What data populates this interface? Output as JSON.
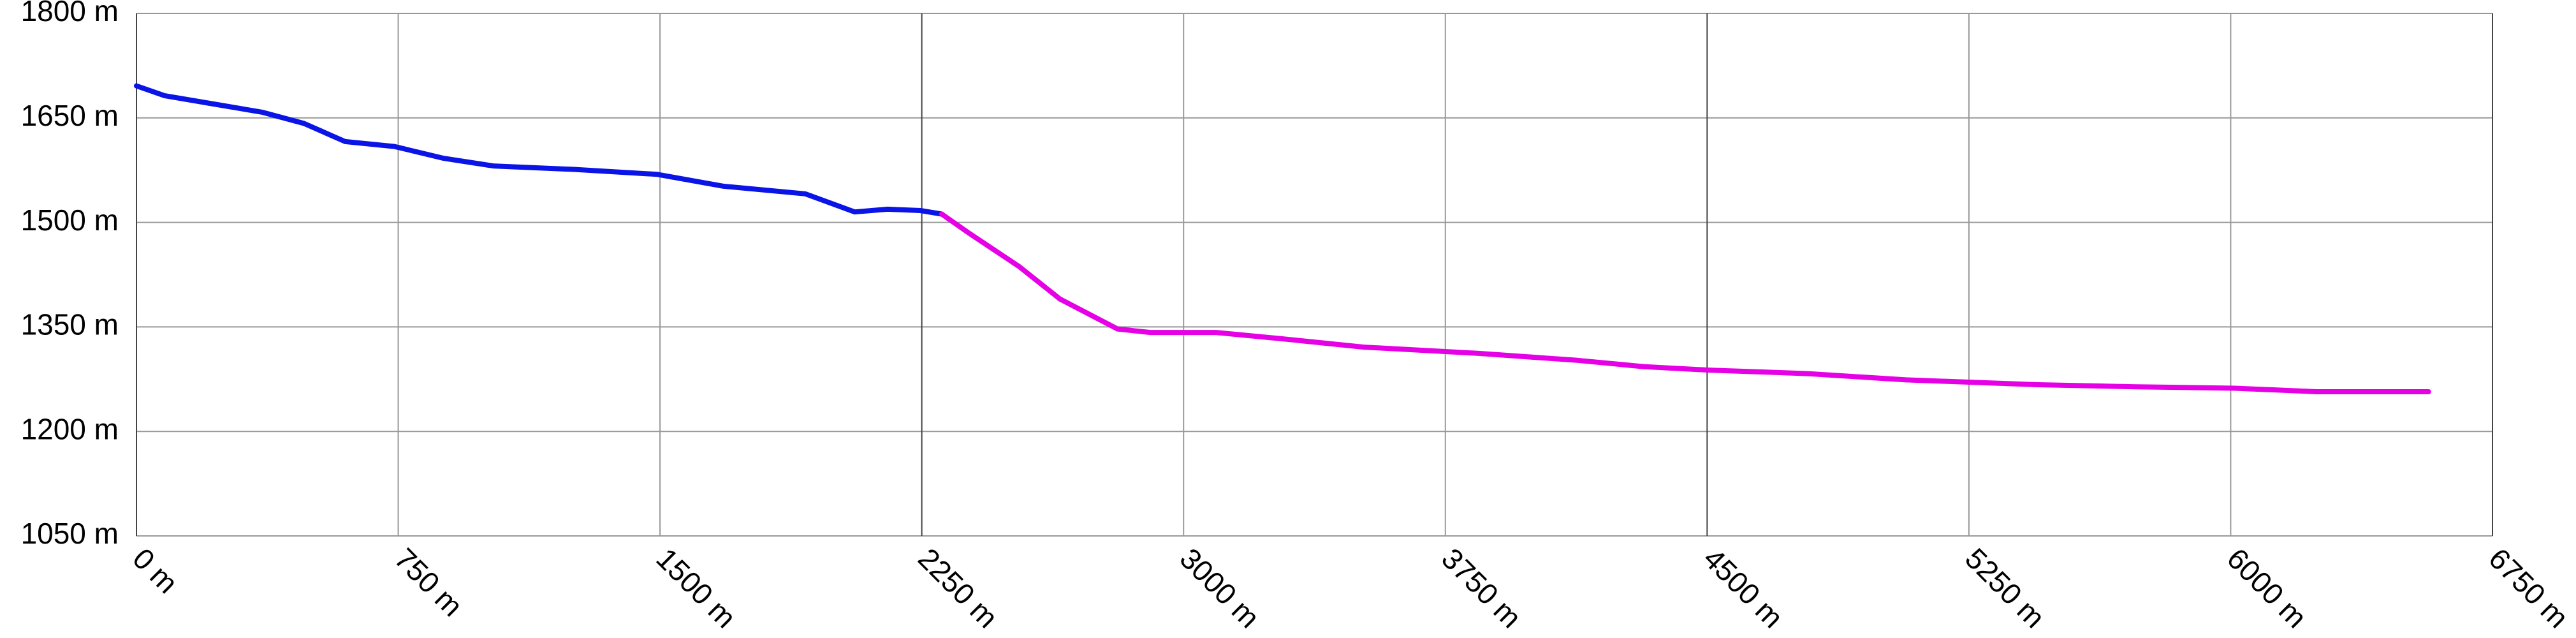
{
  "chart_data": {
    "type": "line",
    "xlim": [
      0,
      6750
    ],
    "xticks": [
      {
        "value": 0,
        "label": "0 m"
      },
      {
        "value": 750,
        "label": "750 m"
      },
      {
        "value": 1500,
        "label": "1500 m"
      },
      {
        "value": 2250,
        "label": "2250 m"
      },
      {
        "value": 3000,
        "label": "3000 m"
      },
      {
        "value": 3750,
        "label": "3750 m"
      },
      {
        "value": 4500,
        "label": "4500 m"
      },
      {
        "value": 5250,
        "label": "5250 m"
      },
      {
        "value": 6000,
        "label": "6000 m"
      },
      {
        "value": 6750,
        "label": "6750 m"
      }
    ],
    "ylim": [
      1050,
      1800
    ],
    "yticks": [
      {
        "value": 1050,
        "label": "1050 m"
      },
      {
        "value": 1200,
        "label": "1200 m"
      },
      {
        "value": 1350,
        "label": "1350 m"
      },
      {
        "value": 1500,
        "label": "1500 m"
      },
      {
        "value": 1650,
        "label": "1650 m"
      },
      {
        "value": 1800,
        "label": "1800 m"
      }
    ],
    "grid": true,
    "series": [
      {
        "color": "#0a14e6",
        "x": [
          0,
          80,
          221,
          362,
          480,
          598,
          739,
          880,
          1022,
          1257,
          1492,
          1681,
          1916,
          2058,
          2152,
          2246,
          2307
        ],
        "values": [
          1696,
          1682,
          1670,
          1658,
          1642,
          1616,
          1609,
          1592,
          1581,
          1576,
          1569,
          1552,
          1541,
          1515,
          1519,
          1517,
          1512
        ]
      },
      {
        "color": "#e600e6",
        "x": [
          2307,
          2387,
          2528,
          2646,
          2811,
          2905,
          3093,
          3282,
          3517,
          3846,
          4129,
          4317,
          4505,
          4788,
          5070,
          5447,
          5729,
          6012,
          6247,
          6567
        ],
        "values": [
          1512,
          1484,
          1437,
          1390,
          1347,
          1342,
          1342,
          1333,
          1321,
          1312,
          1302,
          1293,
          1288,
          1283,
          1274,
          1267,
          1264,
          1262,
          1257,
          1257
        ]
      }
    ]
  }
}
